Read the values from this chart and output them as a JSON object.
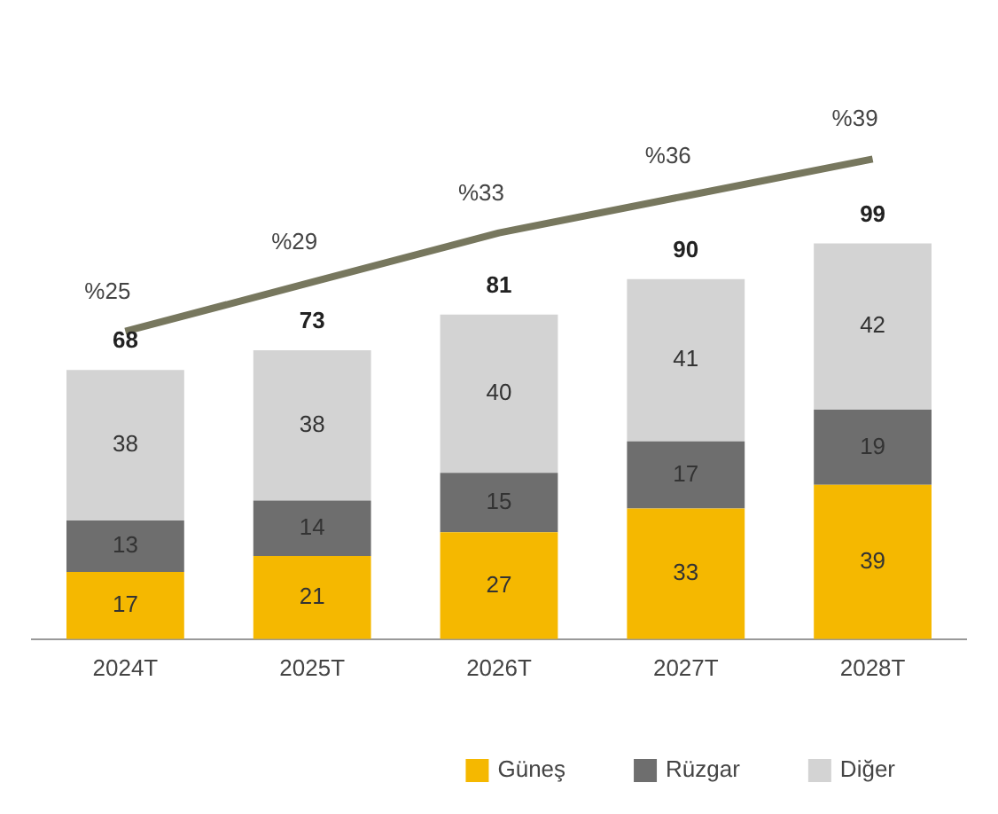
{
  "chart_data": {
    "type": "bar",
    "stacked": true,
    "categories": [
      "2024T",
      "2025T",
      "2026T",
      "2027T",
      "2028T"
    ],
    "series": [
      {
        "name": "Güneş",
        "color": "#f5b800",
        "values": [
          17,
          21,
          27,
          33,
          39
        ]
      },
      {
        "name": "Rüzgar",
        "color": "#6e6e6e",
        "values": [
          13,
          14,
          15,
          17,
          19
        ]
      },
      {
        "name": "Diğer",
        "color": "#d3d3d3",
        "values": [
          38,
          38,
          40,
          41,
          42
        ]
      },
      {
        "type": "line",
        "axis": "y2",
        "color": "#77775e",
        "values": [
          25,
          29,
          33,
          36,
          39
        ],
        "value_labels": [
          "%25",
          "%29",
          "%33",
          "%36",
          "%39"
        ]
      }
    ],
    "totals": [
      "68",
      "73",
      "81",
      "90",
      "99"
    ],
    "data_labels": true,
    "tick_labels": "x",
    "grid": false,
    "legend": "bottom",
    "marker": "none"
  }
}
